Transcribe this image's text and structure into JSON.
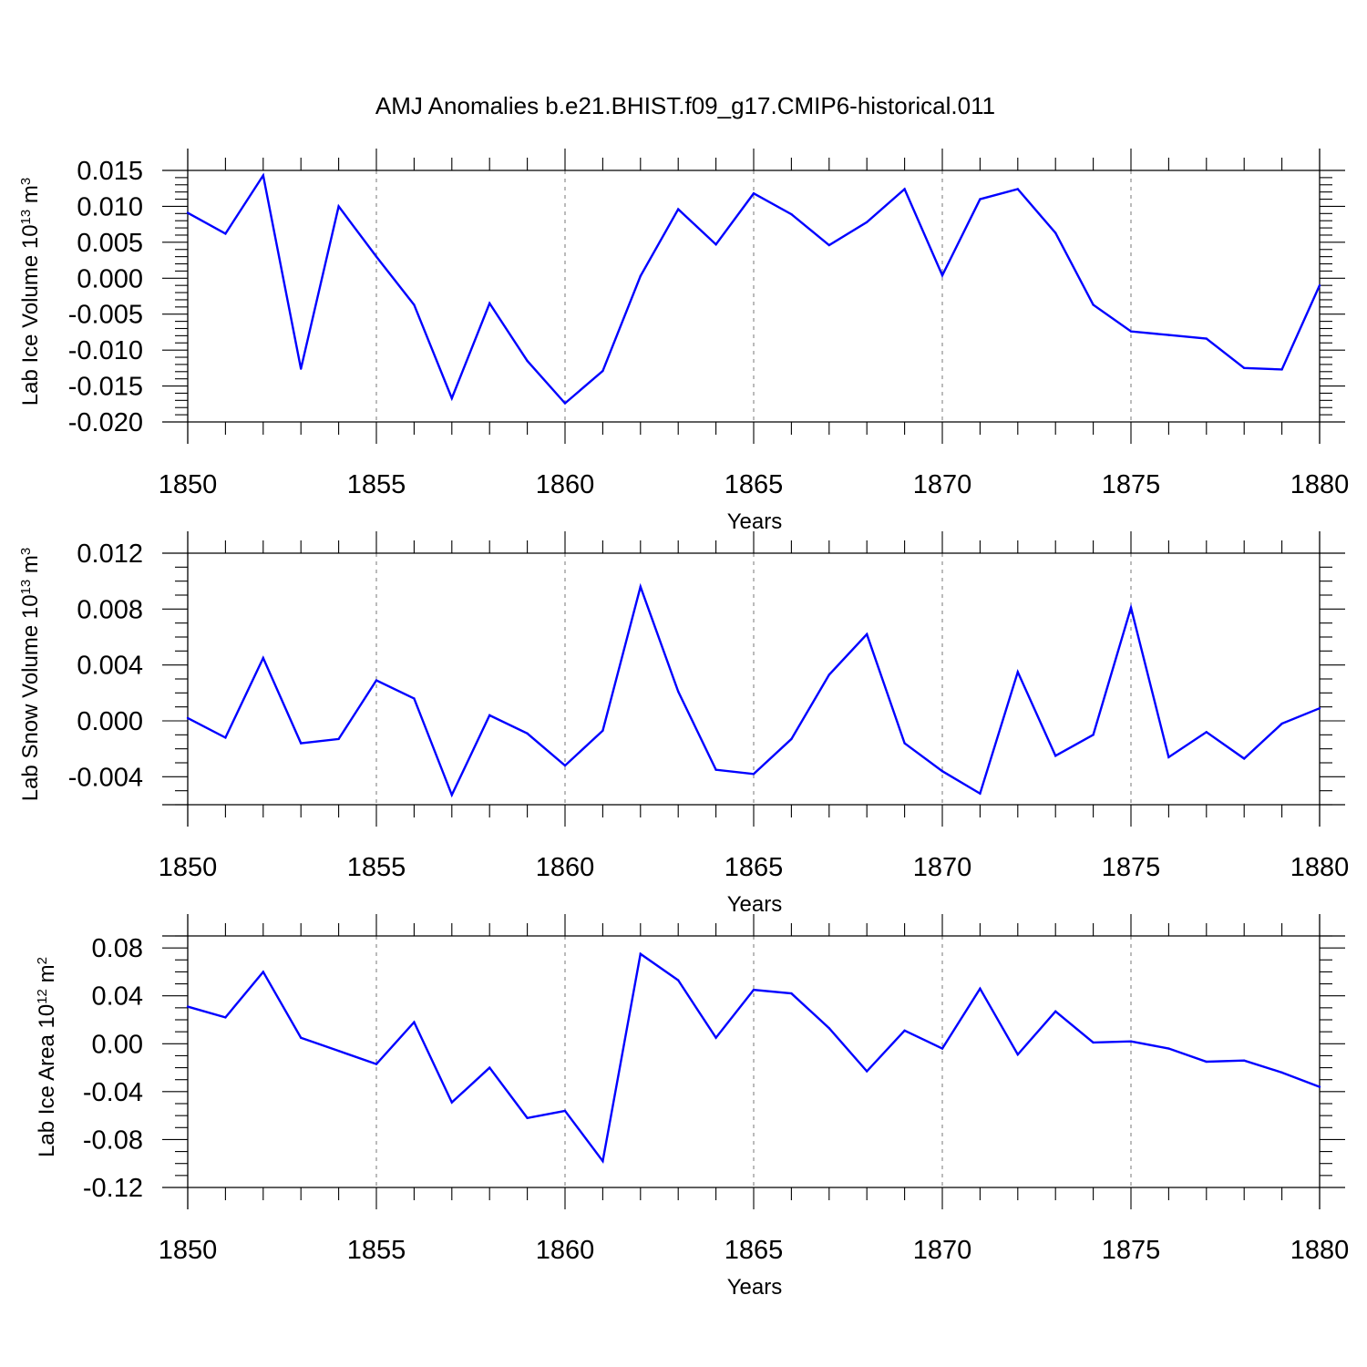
{
  "title": "AMJ Anomalies b.e21.BHIST.f09_g17.CMIP6-historical.011",
  "colors": {
    "series": "#0000ff",
    "grid": "#777777",
    "axis": "#000000"
  },
  "chart_data": [
    {
      "type": "line",
      "title": "AMJ Anomalies b.e21.BHIST.f09_g17.CMIP6-historical.011",
      "ylabel": "Lab Ice Volume 10",
      "ylabel_exp": "13",
      "ylabel_unit": " m",
      "ylabel_unit_exp": "3",
      "xlabel": "Years",
      "xlim": [
        1850,
        1880
      ],
      "ylim": [
        -0.02,
        0.015
      ],
      "xticks": [
        1850,
        1855,
        1860,
        1865,
        1870,
        1875,
        1880
      ],
      "xtick_labels": [
        "1850",
        "1855",
        "1860",
        "1865",
        "1870",
        "1875",
        "1880"
      ],
      "yticks": [
        -0.02,
        -0.015,
        -0.01,
        -0.005,
        0.0,
        0.005,
        0.01,
        0.015
      ],
      "ytick_labels": [
        "-0.020",
        "-0.015",
        "-0.010",
        "-0.005",
        "0.000",
        "0.005",
        "0.010",
        "0.015"
      ],
      "y_minor_step": 0.001,
      "grid": "dashed vertical at major x ticks",
      "series": [
        {
          "name": "Lab Ice Volume",
          "x": [
            1850,
            1851,
            1852,
            1853,
            1854,
            1855,
            1856,
            1857,
            1858,
            1859,
            1860,
            1861,
            1862,
            1863,
            1864,
            1865,
            1866,
            1867,
            1868,
            1869,
            1870,
            1871,
            1872,
            1873,
            1874,
            1875,
            1876,
            1877,
            1878,
            1879,
            1880
          ],
          "values": [
            0.0091,
            0.0062,
            0.0143,
            -0.0126,
            0.01,
            0.003,
            -0.0037,
            -0.0167,
            -0.0035,
            -0.0115,
            -0.0174,
            -0.0129,
            0.0003,
            0.0096,
            0.0047,
            0.0118,
            0.0089,
            0.0046,
            0.0078,
            0.0124,
            0.0004,
            0.011,
            0.0124,
            0.0063,
            -0.0037,
            -0.0074,
            -0.0079,
            -0.0084,
            -0.0125,
            -0.0127,
            -0.001
          ]
        }
      ]
    },
    {
      "type": "line",
      "ylabel": "Lab Snow Volume 10",
      "ylabel_exp": "13",
      "ylabel_unit": " m",
      "ylabel_unit_exp": "3",
      "xlabel": "Years",
      "xlim": [
        1850,
        1880
      ],
      "ylim": [
        -0.006,
        0.012
      ],
      "xticks": [
        1850,
        1855,
        1860,
        1865,
        1870,
        1875,
        1880
      ],
      "xtick_labels": [
        "1850",
        "1855",
        "1860",
        "1865",
        "1870",
        "1875",
        "1880"
      ],
      "yticks": [
        -0.004,
        0.0,
        0.004,
        0.008,
        0.012
      ],
      "ytick_labels": [
        "-0.004",
        "0.000",
        "0.004",
        "0.008",
        "0.012"
      ],
      "y_minor_step": 0.001,
      "grid": "dashed vertical at major x ticks",
      "series": [
        {
          "name": "Lab Snow Volume",
          "x": [
            1850,
            1851,
            1852,
            1853,
            1854,
            1855,
            1856,
            1857,
            1858,
            1859,
            1860,
            1861,
            1862,
            1863,
            1864,
            1865,
            1866,
            1867,
            1868,
            1869,
            1870,
            1871,
            1872,
            1873,
            1874,
            1875,
            1876,
            1877,
            1878,
            1879,
            1880
          ],
          "values": [
            0.0002,
            -0.0012,
            0.0045,
            -0.0016,
            -0.0013,
            0.0029,
            0.0016,
            -0.0053,
            0.0004,
            -0.0009,
            -0.0032,
            -0.0007,
            0.0096,
            0.0021,
            -0.0035,
            -0.0038,
            -0.0013,
            0.0033,
            0.0062,
            -0.0016,
            -0.0036,
            -0.0052,
            0.0035,
            -0.0025,
            -0.001,
            0.0081,
            -0.0026,
            -0.0008,
            -0.0027,
            -0.0002,
            0.0009
          ]
        }
      ]
    },
    {
      "type": "line",
      "ylabel": "Lab Ice Area 10",
      "ylabel_exp": "12",
      "ylabel_unit": " m",
      "ylabel_unit_exp": "2",
      "xlabel": "Years",
      "xlim": [
        1850,
        1880
      ],
      "ylim": [
        -0.12,
        0.09
      ],
      "xticks": [
        1850,
        1855,
        1860,
        1865,
        1870,
        1875,
        1880
      ],
      "xtick_labels": [
        "1850",
        "1855",
        "1860",
        "1865",
        "1870",
        "1875",
        "1880"
      ],
      "yticks": [
        -0.12,
        -0.08,
        -0.04,
        0.0,
        0.04,
        0.08
      ],
      "ytick_labels": [
        "-0.12",
        "-0.08",
        "-0.04",
        "0.00",
        "0.04",
        "0.08"
      ],
      "y_minor_step": 0.01,
      "grid": "dashed vertical at major x ticks",
      "series": [
        {
          "name": "Lab Ice Area",
          "x": [
            1850,
            1851,
            1852,
            1853,
            1854,
            1855,
            1856,
            1857,
            1858,
            1859,
            1860,
            1861,
            1862,
            1863,
            1864,
            1865,
            1866,
            1867,
            1868,
            1869,
            1870,
            1871,
            1872,
            1873,
            1874,
            1875,
            1876,
            1877,
            1878,
            1879,
            1880
          ],
          "values": [
            0.031,
            0.022,
            0.06,
            0.005,
            -0.006,
            -0.017,
            0.018,
            -0.049,
            -0.02,
            -0.062,
            -0.056,
            -0.098,
            0.075,
            0.053,
            0.005,
            0.045,
            0.042,
            0.013,
            -0.023,
            0.011,
            -0.004,
            0.046,
            -0.009,
            0.027,
            0.001,
            0.002,
            -0.004,
            -0.015,
            -0.014,
            -0.024,
            -0.036
          ]
        }
      ]
    }
  ]
}
